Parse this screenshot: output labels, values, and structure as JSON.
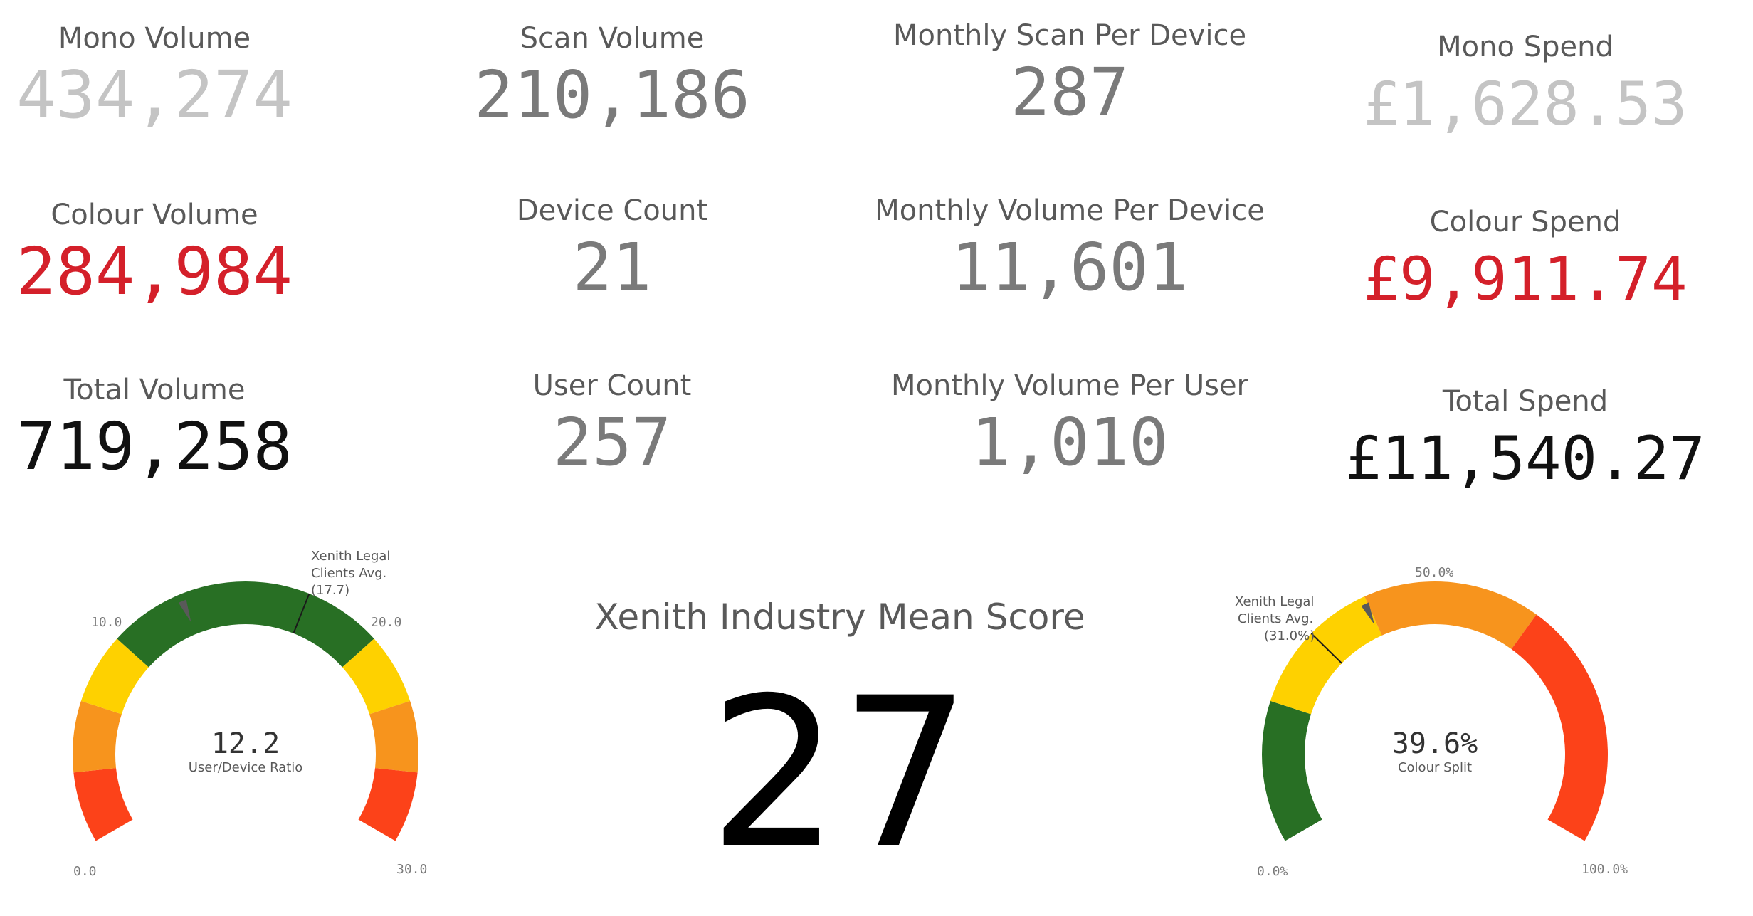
{
  "colors": {
    "light_grey": "#c4c4c4",
    "grey": "#7a7a7a",
    "red": "#d4202a",
    "black": "#111111",
    "band_red": "#fc4219",
    "band_orange": "#f7941d",
    "band_yellow": "#fed100",
    "band_green": "#286f24",
    "needle": "#595959"
  },
  "kpis": {
    "mono_volume": {
      "label": "Mono Volume",
      "value": "434,274"
    },
    "colour_volume": {
      "label": "Colour Volume",
      "value": "284,984"
    },
    "total_volume": {
      "label": "Total Volume",
      "value": "719,258"
    },
    "scan_volume": {
      "label": "Scan Volume",
      "value": "210,186"
    },
    "device_count": {
      "label": "Device Count",
      "value": "21"
    },
    "user_count": {
      "label": "User Count",
      "value": "257"
    },
    "monthly_scan_per_device": {
      "label": "Monthly Scan Per Device",
      "value": "287"
    },
    "monthly_volume_per_device": {
      "label": "Monthly Volume Per Device",
      "value": "11,601"
    },
    "monthly_volume_per_user": {
      "label": "Monthly Volume Per User",
      "value": "1,010"
    },
    "mono_spend": {
      "label": "Mono Spend",
      "value": "£1,628.53"
    },
    "colour_spend": {
      "label": "Colour Spend",
      "value": "£9,911.74"
    },
    "total_spend": {
      "label": "Total Spend",
      "value": "£11,540.27"
    }
  },
  "industry_score": {
    "title": "Xenith Industry Mean Score",
    "value": "27"
  },
  "gauge_ratio": {
    "min": 0,
    "max": 30,
    "value": 12.2,
    "value_text": "12.2",
    "label": "User/Device Ratio",
    "ticks": {
      "min": "0.0",
      "t10": "10.0",
      "t20": "20.0",
      "max": "30.0"
    },
    "reference": {
      "value": 17.7,
      "line1": "Xenith Legal",
      "line2": "Clients Avg.",
      "line3": "(17.7)"
    },
    "bands": [
      {
        "from": 0,
        "to": 3,
        "color": "#fc4219"
      },
      {
        "from": 3,
        "to": 6,
        "color": "#f7941d"
      },
      {
        "from": 6,
        "to": 9,
        "color": "#fed100"
      },
      {
        "from": 9,
        "to": 21,
        "color": "#286f24"
      },
      {
        "from": 21,
        "to": 24,
        "color": "#fed100"
      },
      {
        "from": 24,
        "to": 27,
        "color": "#f7941d"
      },
      {
        "from": 27,
        "to": 30,
        "color": "#fc4219"
      }
    ]
  },
  "gauge_colour": {
    "min": 0,
    "max": 100,
    "value": 39.6,
    "value_text": "39.6%",
    "label": "Colour Split",
    "ticks": {
      "min": "0.0%",
      "mid": "50.0%",
      "max": "100.0%"
    },
    "reference": {
      "value": 31.0,
      "line1": "Xenith Legal",
      "line2": "Clients Avg.",
      "line3": "(31.0%)"
    },
    "bands": [
      {
        "from": 0,
        "to": 20,
        "color": "#286f24"
      },
      {
        "from": 20,
        "to": 40,
        "color": "#fed100"
      },
      {
        "from": 40,
        "to": 65,
        "color": "#f7941d"
      },
      {
        "from": 65,
        "to": 100,
        "color": "#fc4219"
      }
    ]
  }
}
